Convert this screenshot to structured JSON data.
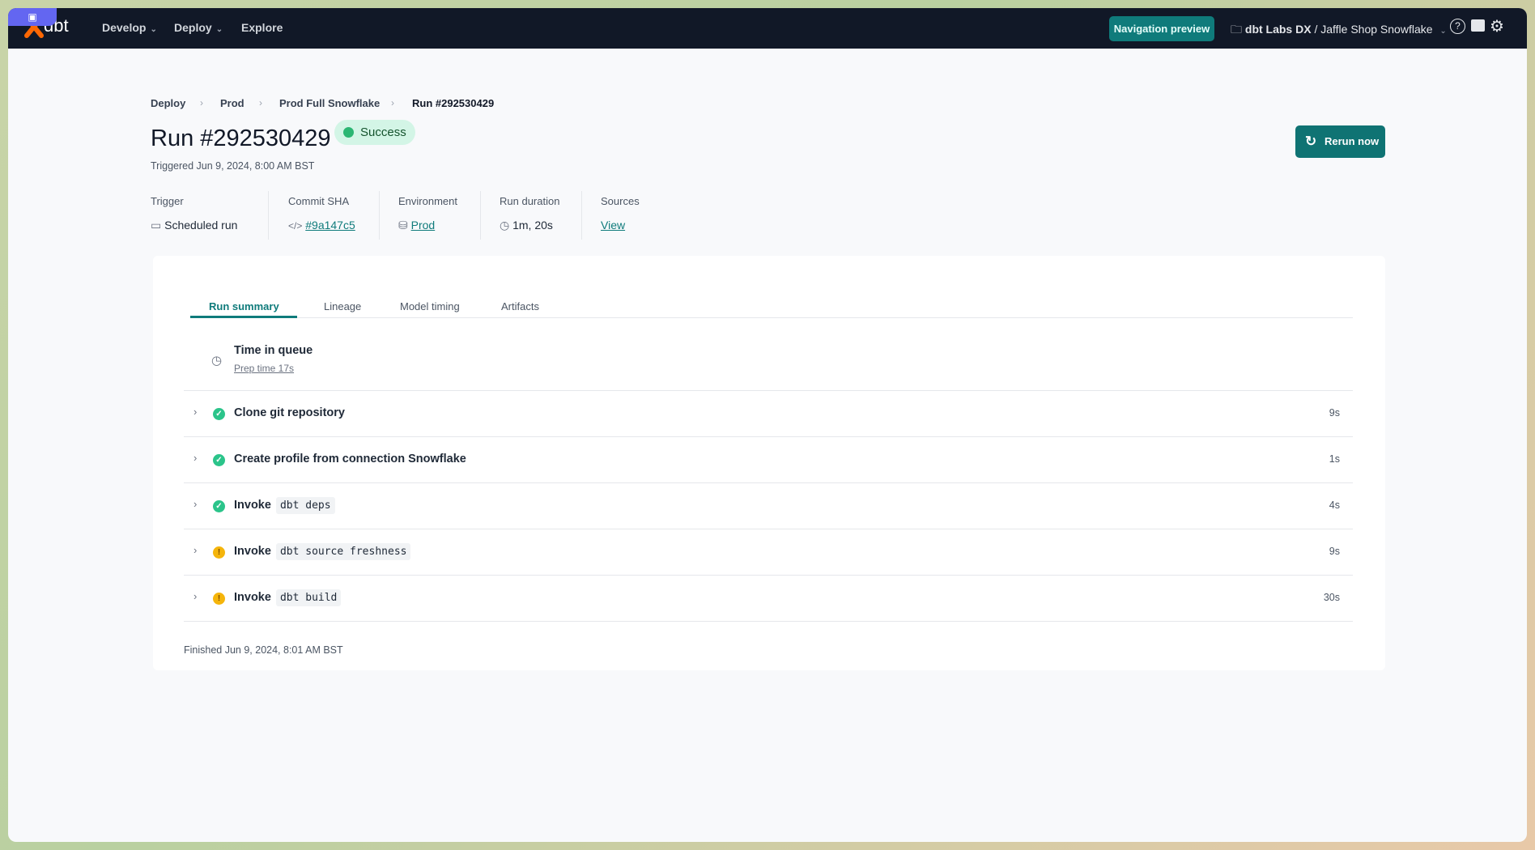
{
  "header": {
    "logo": "dbt",
    "nav": [
      {
        "label": "Develop"
      },
      {
        "label": "Deploy"
      },
      {
        "label": "Explore"
      }
    ],
    "navigation_preview": "Navigation preview",
    "account": "dbt Labs DX",
    "project": "Jaffle Shop Snowflake",
    "accent": "#0f7b7b"
  },
  "breadcrumb": [
    "Deploy",
    "Prod",
    "Prod Full Snowflake",
    "Run #292530429"
  ],
  "run": {
    "title": "Run #292530429",
    "status": "Success",
    "triggered": "Triggered Jun 9, 2024, 8:00 AM BST",
    "rerun_label": "Rerun now"
  },
  "meta": [
    {
      "label": "Trigger",
      "value": "Scheduled run",
      "icon": "calendar-icon"
    },
    {
      "label": "Commit SHA",
      "value": "#9a147c5",
      "icon": "code-icon"
    },
    {
      "label": "Environment",
      "value": "Prod",
      "icon": "database-icon"
    },
    {
      "label": "Run duration",
      "value": "1m, 20s",
      "icon": "clock-icon"
    },
    {
      "label": "Sources",
      "value": "View"
    }
  ],
  "tabs": [
    {
      "label": "Run summary",
      "active": true
    },
    {
      "label": "Lineage"
    },
    {
      "label": "Model timing"
    },
    {
      "label": "Artifacts"
    }
  ],
  "queue": {
    "title": "Time in queue",
    "prep": "Prep time 17s"
  },
  "steps": [
    {
      "label": "Clone git repository",
      "code": "",
      "status": "success",
      "duration": "9s"
    },
    {
      "label": "Create profile from connection Snowflake",
      "code": "",
      "status": "success",
      "duration": "1s"
    },
    {
      "label": "Invoke",
      "code": "dbt deps",
      "status": "success",
      "duration": "4s"
    },
    {
      "label": "Invoke",
      "code": "dbt source freshness",
      "status": "warning",
      "duration": "9s"
    },
    {
      "label": "Invoke",
      "code": "dbt build",
      "status": "warning",
      "duration": "30s"
    }
  ],
  "finished": "Finished Jun 9, 2024, 8:01 AM BST"
}
